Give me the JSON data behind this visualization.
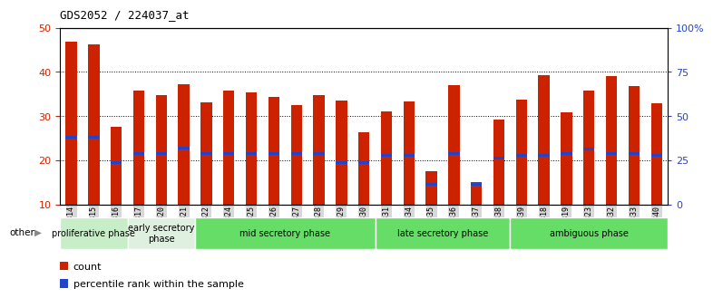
{
  "title": "GDS2052 / 224037_at",
  "samples": [
    "GSM109814",
    "GSM109815",
    "GSM109816",
    "GSM109817",
    "GSM109820",
    "GSM109821",
    "GSM109822",
    "GSM109824",
    "GSM109825",
    "GSM109826",
    "GSM109827",
    "GSM109828",
    "GSM109829",
    "GSM109830",
    "GSM109831",
    "GSM109834",
    "GSM109835",
    "GSM109836",
    "GSM109837",
    "GSM109838",
    "GSM109839",
    "GSM109818",
    "GSM109819",
    "GSM109823",
    "GSM109832",
    "GSM109833",
    "GSM109840"
  ],
  "count_values": [
    46.8,
    46.3,
    27.5,
    35.8,
    34.7,
    37.3,
    33.1,
    35.8,
    35.3,
    34.4,
    32.5,
    34.7,
    33.5,
    26.3,
    31.0,
    33.3,
    17.5,
    37.0,
    15.0,
    29.2,
    33.8,
    39.2,
    30.8,
    35.8,
    39.0,
    36.8,
    33.0
  ],
  "percentile_values": [
    25.2,
    25.2,
    19.5,
    21.5,
    21.5,
    22.8,
    21.5,
    21.5,
    21.5,
    21.5,
    21.5,
    21.5,
    19.5,
    19.5,
    21.0,
    21.0,
    14.5,
    21.5,
    14.5,
    20.5,
    21.0,
    21.0,
    21.5,
    22.5,
    21.5,
    21.5,
    21.0
  ],
  "phases": [
    {
      "name": "proliferative phase",
      "start": 0,
      "end": 3,
      "color": "#c8eec8"
    },
    {
      "name": "early secretory\nphase",
      "start": 3,
      "end": 6,
      "color": "#e0f0e0"
    },
    {
      "name": "mid secretory phase",
      "start": 6,
      "end": 14,
      "color": "#66dd66"
    },
    {
      "name": "late secretory phase",
      "start": 14,
      "end": 20,
      "color": "#66dd66"
    },
    {
      "name": "ambiguous phase",
      "start": 20,
      "end": 27,
      "color": "#66dd66"
    }
  ],
  "bar_color": "#cc2200",
  "percentile_color": "#2244cc",
  "plot_bg_color": "#ffffff",
  "tick_bg_color": "#d8d8d8",
  "ylim_left": [
    10,
    50
  ],
  "ylim_right": [
    0,
    100
  ],
  "yticks_left": [
    10,
    20,
    30,
    40,
    50
  ],
  "yticks_right": [
    0,
    25,
    50,
    75,
    100
  ],
  "ytick_labels_right": [
    "0",
    "25",
    "50",
    "75",
    "100%"
  ],
  "ylabel_left_color": "#cc2200",
  "ylabel_right_color": "#2244cc"
}
